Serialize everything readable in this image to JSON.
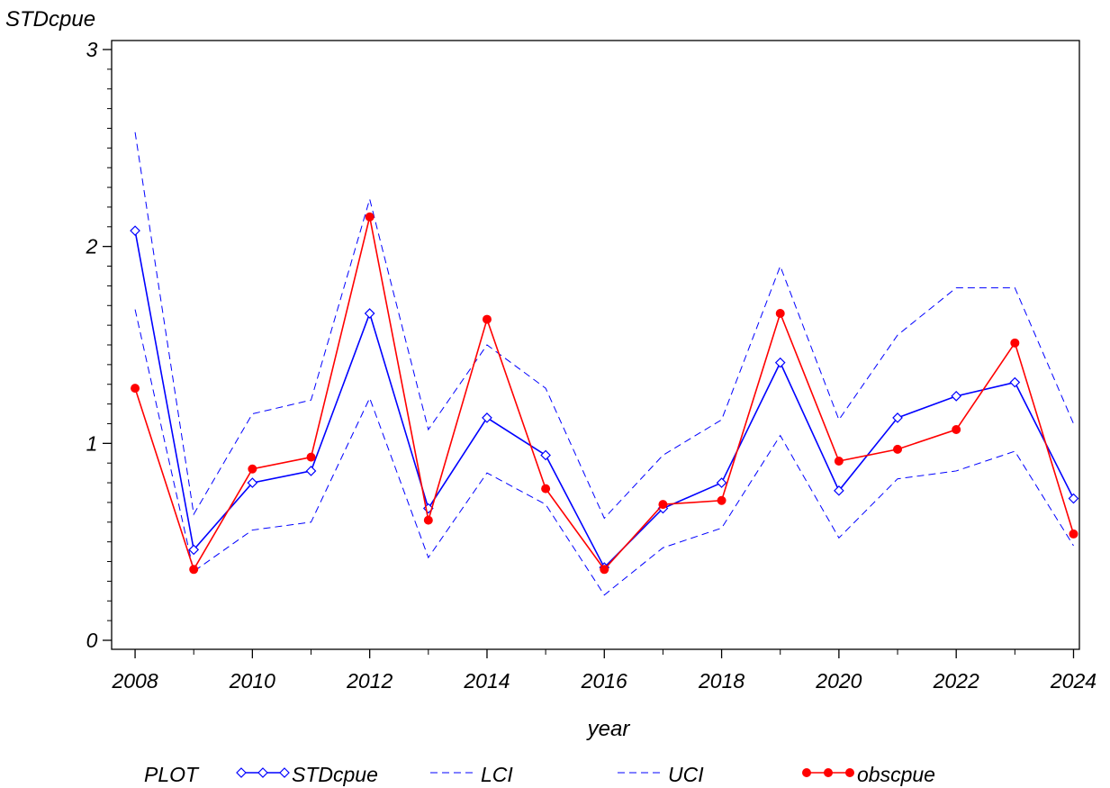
{
  "chart_data": {
    "type": "line",
    "ylabel": "STDcpue",
    "xlabel": "year",
    "x": [
      2008,
      2009,
      2010,
      2011,
      2012,
      2013,
      2014,
      2015,
      2016,
      2017,
      2018,
      2019,
      2020,
      2021,
      2022,
      2023,
      2024
    ],
    "xticks": [
      2008,
      2010,
      2012,
      2014,
      2016,
      2018,
      2020,
      2022,
      2024
    ],
    "xlim": [
      2007.6,
      2024.1
    ],
    "yticks": [
      0,
      1,
      2,
      3
    ],
    "ylim": [
      0,
      3
    ],
    "legend_title": "PLOT",
    "legend_position": "bottom",
    "series": [
      {
        "name": "STDcpue",
        "color": "#0000ff",
        "style": "solid",
        "marker": "diamond",
        "values": [
          2.08,
          0.46,
          0.8,
          0.86,
          1.66,
          0.67,
          1.13,
          0.94,
          0.37,
          0.67,
          0.8,
          1.41,
          0.76,
          1.13,
          1.24,
          1.31,
          0.72
        ]
      },
      {
        "name": "LCI",
        "color": "#0000ff",
        "style": "dashed",
        "marker": "none",
        "values": [
          1.68,
          0.35,
          0.56,
          0.6,
          1.23,
          0.42,
          0.85,
          0.69,
          0.23,
          0.47,
          0.57,
          1.04,
          0.52,
          0.82,
          0.86,
          0.96,
          0.48
        ]
      },
      {
        "name": "UCI",
        "color": "#0000ff",
        "style": "dashed",
        "marker": "none",
        "values": [
          2.58,
          0.64,
          1.15,
          1.22,
          2.24,
          1.07,
          1.5,
          1.28,
          0.62,
          0.94,
          1.12,
          1.9,
          1.12,
          1.55,
          1.79,
          1.79,
          1.1
        ]
      },
      {
        "name": "obscpue",
        "color": "#ff0000",
        "style": "solid",
        "marker": "dot",
        "values": [
          1.28,
          0.36,
          0.87,
          0.93,
          2.15,
          0.61,
          1.63,
          0.77,
          0.36,
          0.69,
          0.71,
          1.66,
          0.91,
          0.97,
          1.07,
          1.51,
          0.54
        ]
      }
    ]
  }
}
